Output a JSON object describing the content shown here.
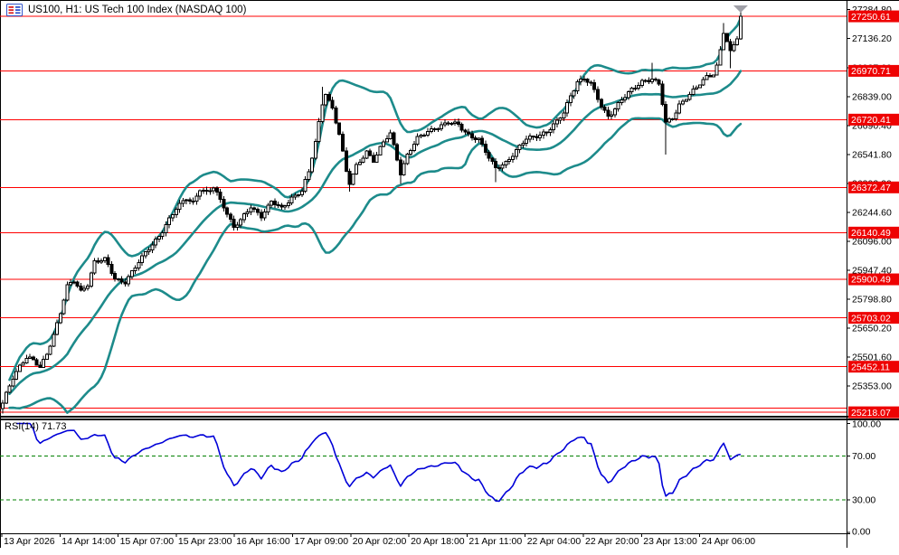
{
  "window": {
    "title": "US100, H1: US Tech 100 Index (NASDAQ 100)"
  },
  "colors": {
    "level_red": "#ff0000",
    "label_red_bg": "#ee0202",
    "label_text_white": "#ffffff",
    "band_teal": "#1d8b8b",
    "rsi_blue": "#0000d8",
    "rsi_level_green": "#008000",
    "candle_outline": "#000000",
    "bull_fill": "#ffffff",
    "bear_fill": "#000000",
    "marker_gray": "#a0a0a8",
    "axis_text": "#000000"
  },
  "chart_data": {
    "type": "candlestick",
    "instrument": "US100",
    "timeframe": "H1",
    "title": "US100, H1: US Tech 100 Index (NASDAQ 100)",
    "price_axis": {
      "tick_labels": [
        "27284.80",
        "27136.20",
        "26987.60",
        "26839.00",
        "26690.40",
        "26541.80",
        "26393.20",
        "26244.60",
        "26096.00",
        "25947.40",
        "25798.80",
        "25650.20",
        "25501.60",
        "25353.00"
      ],
      "tick_values": [
        27284.8,
        27136.2,
        26987.6,
        26839.0,
        26690.4,
        26541.8,
        26393.2,
        26244.6,
        26096.0,
        25947.4,
        25798.8,
        25650.2,
        25501.6,
        25353.0
      ],
      "top_value": 27284.8,
      "points_per_pixel": 4.64
    },
    "time_axis": {
      "labels": [
        "13 Apr 2026",
        "14 Apr 14:00",
        "15 Apr 07:00",
        "15 Apr 23:00",
        "16 Apr 16:00",
        "17 Apr 09:00",
        "20 Apr 02:00",
        "20 Apr 18:00",
        "21 Apr 11:00",
        "22 Apr 04:00",
        "22 Apr 20:00",
        "23 Apr 13:00",
        "24 Apr 06:00"
      ]
    },
    "current_price": {
      "value": 27250.61,
      "label": "27250.61"
    },
    "horizontal_levels": [
      {
        "value": 26970.71,
        "label": "26970.71"
      },
      {
        "value": 26720.41,
        "label": "26720.41"
      },
      {
        "value": 26372.47,
        "label": "26372.47"
      },
      {
        "value": 26140.49,
        "label": "26140.49"
      },
      {
        "value": 25900.49,
        "label": "25900.49"
      },
      {
        "value": 25703.02,
        "label": "25703.02"
      },
      {
        "value": 25452.11,
        "label": "25452.11"
      },
      {
        "value": 25240.0,
        "label": ""
      },
      {
        "value": 25218.07,
        "label": "25218.07"
      }
    ],
    "candles": {
      "count": 218,
      "close_waypoints": [
        [
          0,
          25260
        ],
        [
          1,
          25310
        ],
        [
          3,
          25400
        ],
        [
          5,
          25460
        ],
        [
          7,
          25500
        ],
        [
          9,
          25480
        ],
        [
          11,
          25445
        ],
        [
          13,
          25520
        ],
        [
          15,
          25620
        ],
        [
          17,
          25730
        ],
        [
          19,
          25860
        ],
        [
          21,
          25890
        ],
        [
          23,
          25840
        ],
        [
          25,
          25880
        ],
        [
          27,
          25990
        ],
        [
          30,
          26000
        ],
        [
          33,
          25905
        ],
        [
          36,
          25890
        ],
        [
          39,
          25960
        ],
        [
          43,
          26060
        ],
        [
          47,
          26150
        ],
        [
          51,
          26260
        ],
        [
          54,
          26320
        ],
        [
          56,
          26300
        ],
        [
          58,
          26365
        ],
        [
          60,
          26340
        ],
        [
          62,
          26370
        ],
        [
          65,
          26280
        ],
        [
          68,
          26170
        ],
        [
          70,
          26200
        ],
        [
          73,
          26270
        ],
        [
          76,
          26230
        ],
        [
          79,
          26300
        ],
        [
          82,
          26260
        ],
        [
          85,
          26320
        ],
        [
          88,
          26360
        ],
        [
          90,
          26450
        ],
        [
          92,
          26600
        ],
        [
          94,
          26800
        ],
        [
          95,
          26860
        ],
        [
          97,
          26780
        ],
        [
          99,
          26650
        ],
        [
          101,
          26450
        ],
        [
          102,
          26390
        ],
        [
          104,
          26480
        ],
        [
          107,
          26560
        ],
        [
          109,
          26510
        ],
        [
          112,
          26600
        ],
        [
          114,
          26650
        ],
        [
          116,
          26520
        ],
        [
          117,
          26450
        ],
        [
          119,
          26540
        ],
        [
          122,
          26620
        ],
        [
          125,
          26660
        ],
        [
          128,
          26685
        ],
        [
          131,
          26705
        ],
        [
          134,
          26690
        ],
        [
          137,
          26645
        ],
        [
          140,
          26620
        ],
        [
          143,
          26520
        ],
        [
          145,
          26470
        ],
        [
          148,
          26505
        ],
        [
          151,
          26560
        ],
        [
          154,
          26620
        ],
        [
          157,
          26640
        ],
        [
          160,
          26660
        ],
        [
          163,
          26705
        ],
        [
          165,
          26755
        ],
        [
          167,
          26845
        ],
        [
          169,
          26920
        ],
        [
          171,
          26930
        ],
        [
          173,
          26900
        ],
        [
          176,
          26790
        ],
        [
          178,
          26740
        ],
        [
          180,
          26780
        ],
        [
          182,
          26820
        ],
        [
          185,
          26870
        ],
        [
          188,
          26920
        ],
        [
          191,
          26930
        ],
        [
          193,
          26900
        ],
        [
          195,
          26700
        ],
        [
          197,
          26730
        ],
        [
          199,
          26800
        ],
        [
          202,
          26850
        ],
        [
          204,
          26880
        ],
        [
          205,
          26900
        ],
        [
          207,
          26940
        ],
        [
          209,
          26960
        ],
        [
          210,
          27000
        ],
        [
          211,
          27080
        ],
        [
          212,
          27170
        ],
        [
          213,
          27120
        ],
        [
          214,
          27060
        ],
        [
          215,
          27100
        ],
        [
          216,
          27140
        ],
        [
          217,
          27250.61
        ]
      ],
      "wick_overrides": {
        "high": {
          "94": 26890,
          "191": 27012,
          "212": 27215,
          "217": 27284.8
        },
        "low": {
          "0": 25212,
          "102": 26350,
          "117": 26390,
          "145": 26400,
          "195": 26540,
          "214": 26985
        }
      },
      "last_close": 27250.61
    },
    "bollinger": {
      "period": 20,
      "deviation": 2
    },
    "rsi": {
      "label": "RSI(14) 71.73",
      "period": 14,
      "current_value": 71.73,
      "level_labels": [
        "100.00",
        "70.00",
        "30.00",
        "0.00"
      ],
      "level_values": [
        100,
        70,
        30,
        0
      ],
      "dashed_levels": [
        70,
        30
      ]
    },
    "shift_marker": {
      "shape": "triangle-down"
    }
  }
}
